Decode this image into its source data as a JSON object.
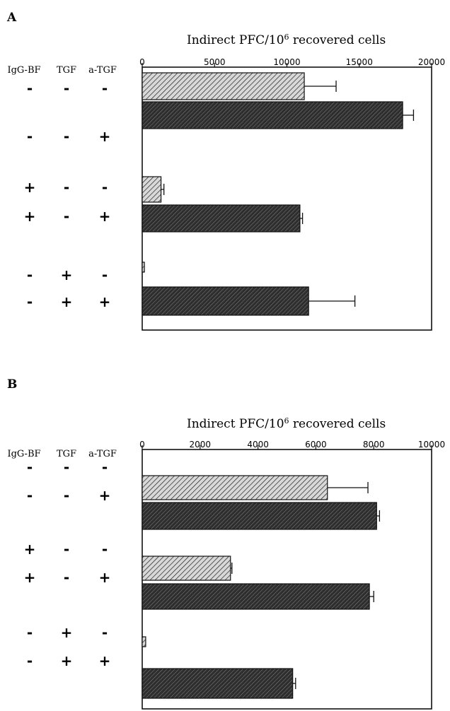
{
  "header_labels": [
    "IgG-BF",
    "TGF",
    "a-TGF"
  ],
  "condition_rows": [
    [
      "-",
      "-",
      "-"
    ],
    [
      "-",
      "-",
      "+"
    ],
    [
      "+",
      "-",
      "-"
    ],
    [
      "+",
      "-",
      "+"
    ],
    [
      "-",
      "+",
      "-"
    ],
    [
      "-",
      "+",
      "+"
    ]
  ],
  "colors": {
    "light_bar": "#d8d8d8",
    "dark_bar": "#3a3a3a",
    "hatch": "#111111"
  },
  "chart_data": [
    {
      "panel": "A",
      "type": "bar",
      "orientation": "horizontal",
      "title": "Indirect PFC/10",
      "title_superscript": "6",
      "title_suffix": " recovered cells",
      "xlim": [
        0,
        20000
      ],
      "ticks": [
        "0",
        "5000",
        "10000",
        "15000",
        "20000"
      ],
      "tick_values": [
        0,
        5000,
        10000,
        15000,
        20000
      ],
      "bars": [
        {
          "value": 11200,
          "error": 2200,
          "style": "light"
        },
        {
          "value": 18000,
          "error": 750,
          "style": "dark"
        },
        {
          "value": 1300,
          "error": 200,
          "style": "light"
        },
        {
          "value": 10900,
          "error": 180,
          "style": "dark"
        },
        {
          "value": 150,
          "error": 0,
          "style": "light"
        },
        {
          "value": 11500,
          "error": 3200,
          "style": "dark"
        }
      ]
    },
    {
      "panel": "B",
      "type": "bar",
      "orientation": "horizontal",
      "title": "Indirect PFC/10",
      "title_superscript": "6",
      "title_suffix": " recovered cells",
      "xlim": [
        0,
        10000
      ],
      "ticks": [
        "0",
        "2000",
        "4000",
        "6000",
        "8000",
        "10000"
      ],
      "tick_values": [
        0,
        2000,
        4000,
        6000,
        8000,
        10000
      ],
      "bars": [
        {
          "value": 6400,
          "error": 1400,
          "style": "light"
        },
        {
          "value": 8100,
          "error": 100,
          "style": "dark"
        },
        {
          "value": 3050,
          "error": 50,
          "style": "light"
        },
        {
          "value": 7850,
          "error": 150,
          "style": "dark"
        },
        {
          "value": 120,
          "error": 0,
          "style": "light"
        },
        {
          "value": 5200,
          "error": 100,
          "style": "dark"
        }
      ]
    }
  ]
}
